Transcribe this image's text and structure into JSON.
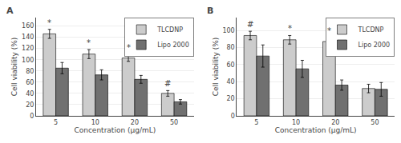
{
  "chart_data": [
    {
      "type": "bar",
      "title": "A",
      "x_label": "Concentration (μg/mL)",
      "y_label": "Cell viability (%)",
      "categories": [
        "5",
        "10",
        "20",
        "50"
      ],
      "series": [
        {
          "name": "TLCDNP",
          "color": "#cccccc",
          "values": [
            146,
            110,
            103,
            40
          ],
          "error": [
            8,
            8,
            6,
            5
          ]
        },
        {
          "name": "Lipo 2000",
          "color": "#707070",
          "values": [
            85,
            73,
            65,
            25
          ],
          "error": [
            10,
            9,
            7,
            4
          ]
        }
      ],
      "annotations": [
        {
          "category": "5",
          "series": "TLCDNP",
          "text": "*"
        },
        {
          "category": "10",
          "series": "TLCDNP",
          "text": "*"
        },
        {
          "category": "20",
          "series": "TLCDNP",
          "text": "*"
        },
        {
          "category": "50",
          "series": "TLCDNP",
          "text": "#"
        }
      ],
      "ylim": [
        0,
        175
      ],
      "yticks": [
        0,
        20,
        40,
        60,
        80,
        100,
        120,
        140,
        160
      ],
      "legend": "upper right"
    },
    {
      "type": "bar",
      "title": "B",
      "x_label": "Concentration (μg/mL)",
      "y_label": "Cell viability (%)",
      "categories": [
        "5",
        "10",
        "20",
        "50"
      ],
      "series": [
        {
          "name": "TLCDNP",
          "color": "#cccccc",
          "values": [
            94,
            89,
            87,
            32
          ],
          "error": [
            5,
            5,
            5,
            5
          ]
        },
        {
          "name": "Lipo 2000",
          "color": "#707070",
          "values": [
            70,
            55,
            36,
            31
          ],
          "error": [
            13,
            10,
            6,
            8
          ]
        }
      ],
      "annotations": [
        {
          "category": "5",
          "series": "TLCDNP",
          "text": "#"
        },
        {
          "category": "10",
          "series": "TLCDNP",
          "text": "*"
        },
        {
          "category": "20",
          "series": "TLCDNP",
          "text": "*"
        }
      ],
      "ylim": [
        0,
        115
      ],
      "yticks": [
        0,
        20,
        40,
        60,
        80,
        100
      ],
      "legend": "upper right"
    }
  ]
}
